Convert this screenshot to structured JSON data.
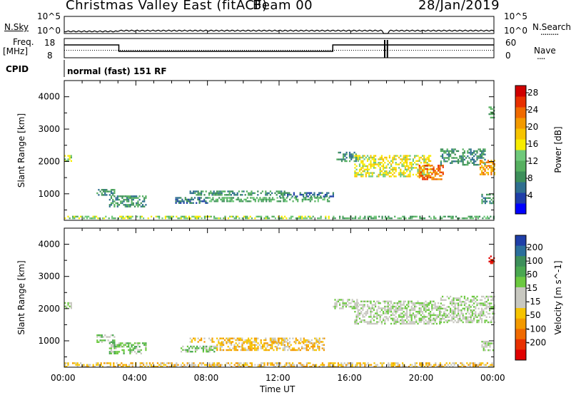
{
  "header": {
    "station": "Christmas Valley East (fitACF)",
    "beam": "Beam 00",
    "date": "28/Jan/2019"
  },
  "noise_panel": {
    "left_label": "N.Sky",
    "right_label": "N.Search",
    "right_dots": ".........",
    "left_ticks": [
      "10^5",
      "10^0"
    ],
    "right_ticks": [
      "10^5",
      "10^0"
    ]
  },
  "freq_panel": {
    "left_label_1": "Freq.",
    "left_label_2": "[MHz]",
    "right_label": "Nave",
    "right_dots": "....",
    "left_ticks": [
      "18",
      "8"
    ],
    "right_ticks": [
      "60",
      "0"
    ],
    "cpid_label": "CPID",
    "mode_text": "normal (fast) 151 RF"
  },
  "time_axis": {
    "title": "Time UT",
    "ticks": [
      "00:00",
      "04:00",
      "08:00",
      "12:00",
      "16:00",
      "20:00",
      "00:00"
    ],
    "values_hours": [
      0,
      4,
      8,
      12,
      16,
      20,
      24
    ]
  },
  "chart_data": [
    {
      "type": "heatmap",
      "panel": "power",
      "ylabel": "Slant Range [km]",
      "yticks": [
        "1000",
        "2000",
        "3000",
        "4000"
      ],
      "ylim": [
        180,
        4500
      ],
      "xlim_hours": [
        0,
        24
      ],
      "colorbar_label": "Power [dB]",
      "colorbar_ticks": [
        "4",
        "8",
        "12",
        "16",
        "20",
        "24",
        "28"
      ],
      "colorbar_colors": [
        "#0000ff",
        "#1f3ea8",
        "#2f6f8f",
        "#3d8f5a",
        "#56b060",
        "#6fc97a",
        "#f7ec00",
        "#f6c400",
        "#f39a00",
        "#f06a00",
        "#e83000",
        "#d00000"
      ],
      "regions": [
        {
          "t_start": 0.0,
          "t_end": 0.4,
          "r_start": 2000,
          "r_end": 2200,
          "level": 5
        },
        {
          "t_start": 1.8,
          "t_end": 2.8,
          "r_start": 950,
          "r_end": 1150,
          "level": 3
        },
        {
          "t_start": 2.5,
          "t_end": 4.6,
          "r_start": 600,
          "r_end": 950,
          "level": 3
        },
        {
          "t_start": 7.0,
          "t_end": 12.3,
          "r_start": 980,
          "r_end": 1100,
          "level": 3
        },
        {
          "t_start": 6.2,
          "t_end": 8.0,
          "r_start": 700,
          "r_end": 900,
          "level": 2
        },
        {
          "t_start": 8.0,
          "t_end": 15.0,
          "r_start": 750,
          "r_end": 900,
          "level": 4
        },
        {
          "t_start": 12.0,
          "t_end": 15.0,
          "r_start": 900,
          "r_end": 1050,
          "level": 2
        },
        {
          "t_start": 15.0,
          "t_end": 24.0,
          "r_start": 250,
          "r_end": 320,
          "level": 4
        },
        {
          "t_start": 0.0,
          "t_end": 15.0,
          "r_start": 230,
          "r_end": 320,
          "level": 5
        },
        {
          "t_start": 15.2,
          "t_end": 16.4,
          "r_start": 2000,
          "r_end": 2300,
          "level": 3
        },
        {
          "t_start": 16.2,
          "t_end": 20.5,
          "r_start": 1550,
          "r_end": 2200,
          "level": 6
        },
        {
          "t_start": 19.8,
          "t_end": 21.2,
          "r_start": 1450,
          "r_end": 1900,
          "level": 9
        },
        {
          "t_start": 21.0,
          "t_end": 23.5,
          "r_start": 1900,
          "r_end": 2400,
          "level": 3
        },
        {
          "t_start": 23.2,
          "t_end": 24.0,
          "r_start": 1600,
          "r_end": 2050,
          "level": 8
        },
        {
          "t_start": 23.3,
          "t_end": 24.0,
          "r_start": 700,
          "r_end": 1000,
          "level": 3
        },
        {
          "t_start": 23.7,
          "t_end": 24.0,
          "r_start": 3350,
          "r_end": 3700,
          "level": 4
        }
      ]
    },
    {
      "type": "heatmap",
      "panel": "velocity",
      "ylabel": "Slant Range [km]",
      "yticks": [
        "1000",
        "2000",
        "3000",
        "4000"
      ],
      "ylim": [
        180,
        4500
      ],
      "xlim_hours": [
        0,
        24
      ],
      "colorbar_label": "Velocity [m s^-1]",
      "colorbar_ticks": [
        "200",
        "100",
        "50",
        "15",
        "-15",
        "-50",
        "-100",
        "-200"
      ],
      "colorbar_colors": [
        "#1f3fa8",
        "#2b6f9c",
        "#3d8f5a",
        "#4aa850",
        "#6cc940",
        "#c8c8c0",
        "#c8c8c0",
        "#f6c400",
        "#f39a00",
        "#f06a00",
        "#e83000",
        "#e00000"
      ],
      "regions": [
        {
          "t_start": 0.0,
          "t_end": 0.4,
          "r_start": 2000,
          "r_end": 2200,
          "level": 5
        },
        {
          "t_start": 1.8,
          "t_end": 2.8,
          "r_start": 950,
          "r_end": 1200,
          "level": 4
        },
        {
          "t_start": 2.5,
          "t_end": 4.6,
          "r_start": 600,
          "r_end": 950,
          "level": 4
        },
        {
          "t_start": 7.0,
          "t_end": 12.5,
          "r_start": 980,
          "r_end": 1100,
          "level": 7
        },
        {
          "t_start": 6.5,
          "t_end": 8.5,
          "r_start": 650,
          "r_end": 850,
          "level": 4
        },
        {
          "t_start": 8.5,
          "t_end": 14.5,
          "r_start": 700,
          "r_end": 950,
          "level": 7
        },
        {
          "t_start": 11.5,
          "t_end": 14.5,
          "r_start": 950,
          "r_end": 1100,
          "level": 7
        },
        {
          "t_start": 0.0,
          "t_end": 24.0,
          "r_start": 220,
          "r_end": 330,
          "level": 7
        },
        {
          "t_start": 15.0,
          "t_end": 16.4,
          "r_start": 2000,
          "r_end": 2300,
          "level": 5
        },
        {
          "t_start": 16.2,
          "t_end": 21.0,
          "r_start": 1550,
          "r_end": 2250,
          "level": 5
        },
        {
          "t_start": 21.0,
          "t_end": 24.0,
          "r_start": 1600,
          "r_end": 2400,
          "level": 5
        },
        {
          "t_start": 23.3,
          "t_end": 24.0,
          "r_start": 700,
          "r_end": 1000,
          "level": 5
        },
        {
          "t_start": 23.7,
          "t_end": 24.0,
          "r_start": 3400,
          "r_end": 3650,
          "level": 11
        }
      ]
    }
  ]
}
